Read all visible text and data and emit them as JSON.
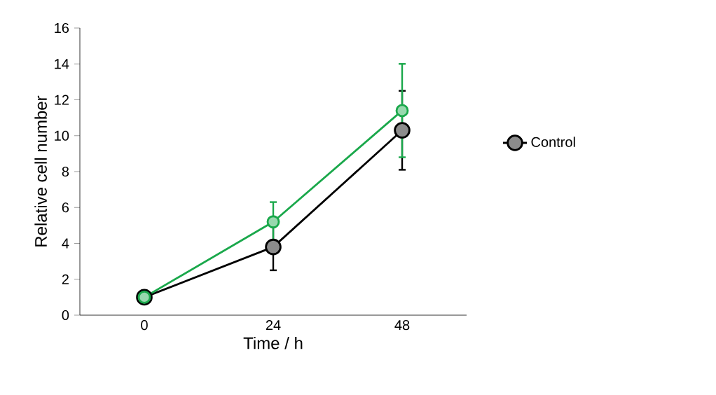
{
  "chart_data": {
    "type": "line",
    "xlabel": "Time / h",
    "ylabel": "Relative cell number",
    "categories": [
      "0",
      "24",
      "48"
    ],
    "series": [
      {
        "name": "Control",
        "color": "#000000",
        "values": [
          1,
          3.8,
          10.3
        ],
        "errors": [
          null,
          1.3,
          2.2
        ]
      },
      {
        "color": "#1aa84b",
        "values": [
          1,
          5.2,
          11.4
        ],
        "errors": [
          null,
          1.1,
          2.6
        ]
      }
    ],
    "ylim": [
      0,
      16
    ],
    "yticks": [
      0,
      2,
      4,
      6,
      8,
      10,
      12,
      14,
      16
    ],
    "marker": "circle",
    "line_style": "solid",
    "legend": "right",
    "grid": false
  }
}
